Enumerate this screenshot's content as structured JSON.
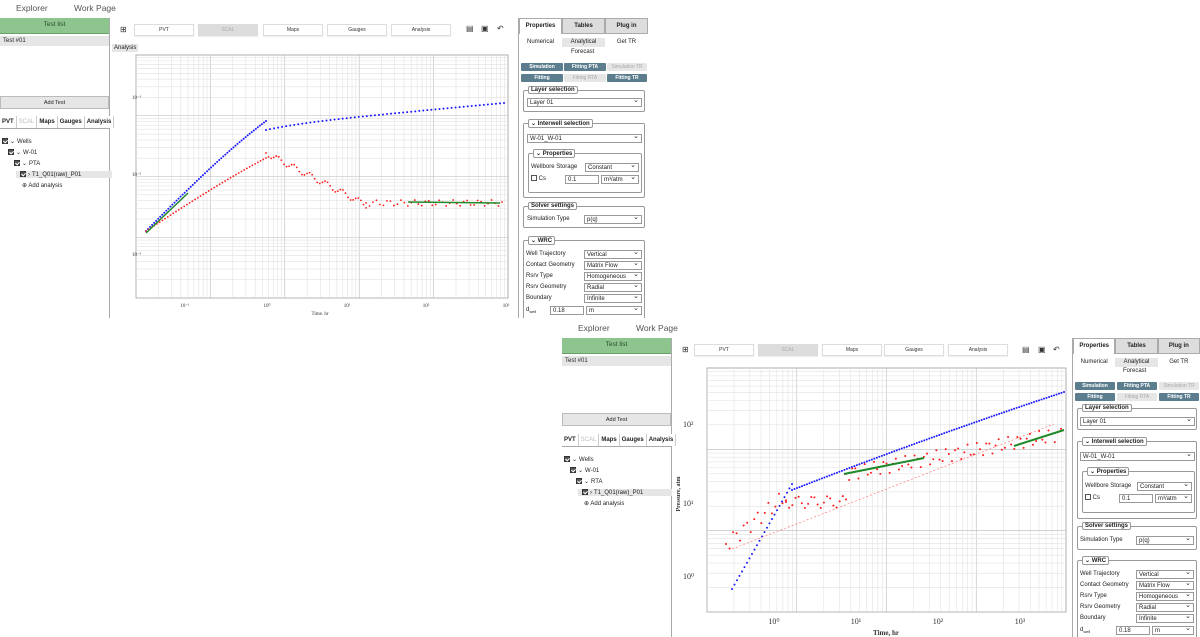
{
  "nav": {
    "explorer": "Explorer",
    "work_page": "Work Page"
  },
  "left": {
    "test_list_title": "Test list",
    "test_item": "Test #01",
    "add_test": "Add Test",
    "subtabs": [
      "PVT",
      "SCAL",
      "Maps",
      "Gauges",
      "Analysis"
    ],
    "tree_wells": "Wells",
    "tree_well": "W-01",
    "tree_add": "Add analysis"
  },
  "toolbar": {
    "pvt": "PVT",
    "scal": "SCAL",
    "maps": "Maps",
    "gauges": "Gauges",
    "analysis": "Analysis"
  },
  "analysis_label": "Analysis",
  "right": {
    "tabs": [
      "Properties",
      "Tables",
      "Plug in"
    ],
    "mode_tabs": [
      "Numerical",
      "Analytical",
      "Get TR"
    ],
    "forecast": "Forecast",
    "chips": [
      "Simulation",
      "Fitting PTA",
      "Simulation TR",
      "Fitting",
      "Fitting RTA",
      "Fitting TR"
    ],
    "layer_selection": "Layer selection",
    "layer_value": "Layer 01",
    "interwell_selection": "Interwell selection",
    "interwell_value": "W-01_W-01",
    "properties": "Properties",
    "wellbore_storage_label": "Wellbore Storage",
    "wellbore_storage_value": "Constant",
    "cs_label": "Cs",
    "cs_value": "0.1",
    "cs_unit": "m³/atm",
    "solver_settings": "Solver settings",
    "simulation_type_label": "Simulation Type",
    "simulation_type_value": "p(q)",
    "wrc": "WRC",
    "well_trajectory_label": "Well Trajectory",
    "well_trajectory_value": "Vertical",
    "contact_geometry_label": "Contact Geometry",
    "contact_geometry_value": "Matrix Flow",
    "rsrv_type_label": "Rsrv Type",
    "rsrv_type_value": "Homogeneous",
    "rsrv_geometry_label": "Rsrv Geometry",
    "rsrv_geometry_value": "Radial",
    "boundary_label": "Boundary",
    "boundary_value": "Infinite",
    "dwell_label": "d",
    "dwell_sub": "well",
    "dwell_value": "0.18",
    "dwell_unit": "m"
  },
  "screen1": {
    "analysis_item": "PTA",
    "analysis_child": "T1_Q01(raw)_P01",
    "plot": {
      "xlabel": "Time, hr",
      "ylabel": "Pressure, atm",
      "x_ticks": [
        "10⁻¹",
        "10⁰",
        "10¹",
        "10²",
        "10³"
      ],
      "y_ticks": [
        "10⁻¹",
        "10⁻²",
        "10⁻³"
      ]
    }
  },
  "screen2": {
    "analysis_item": "RTA",
    "analysis_child": "T1_Q01(raw)_P01",
    "plot": {
      "xlabel": "Time, hr",
      "ylabel": "Pressure, atm",
      "x_ticks": [
        "10⁰",
        "10¹",
        "10²",
        "10³"
      ],
      "y_ticks": [
        "10²",
        "10¹",
        "10⁰"
      ]
    }
  },
  "colors": {
    "accent": "#5b7d8e",
    "green_header": "#8ec48e",
    "series_blue": "#1a1aff",
    "series_red": "#ff1a1a",
    "series_green": "#1f8a2a"
  }
}
